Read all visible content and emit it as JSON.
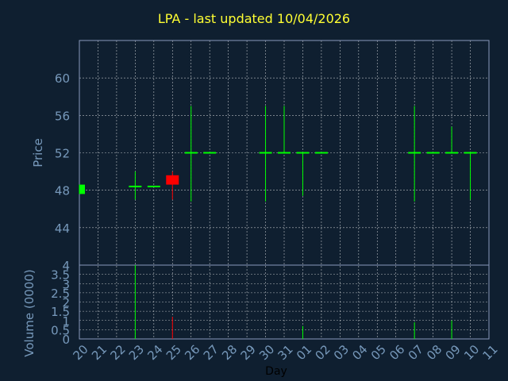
{
  "chart_data": [
    {
      "type": "candlestick",
      "title": "LPA - last updated 10/04/2026",
      "ylabel": "Price",
      "ylim": [
        40,
        64
      ],
      "yticks": [
        44,
        48,
        52,
        56,
        60
      ],
      "up_color": "#00ff00",
      "down_color": "#ff0000",
      "categories": [
        "20",
        "21",
        "22",
        "23",
        "24",
        "25",
        "26",
        "27",
        "28",
        "29",
        "30",
        "31",
        "01",
        "02",
        "03",
        "04",
        "05",
        "06",
        "07",
        "08",
        "09",
        "10",
        "11"
      ],
      "candles": [
        {
          "x": 0.0,
          "open": 47.6,
          "close": 48.6,
          "high": 48.6,
          "low": 47.6
        },
        {
          "x": 3.0,
          "open": 48.4,
          "close": 48.4,
          "high": 50.0,
          "low": 47.0
        },
        {
          "x": 4.0,
          "open": 48.4,
          "close": 48.4,
          "high": 48.4,
          "low": 48.4
        },
        {
          "x": 5.0,
          "open": 49.6,
          "close": 48.6,
          "high": 50.0,
          "low": 47.0
        },
        {
          "x": 6.0,
          "open": 52.0,
          "close": 52.0,
          "high": 57.0,
          "low": 46.8
        },
        {
          "x": 7.0,
          "open": 52.0,
          "close": 52.0,
          "high": 52.0,
          "low": 52.0
        },
        {
          "x": 10.0,
          "open": 52.0,
          "close": 52.0,
          "high": 57.0,
          "low": 46.8
        },
        {
          "x": 11.0,
          "open": 52.0,
          "close": 52.0,
          "high": 57.0,
          "low": 52.0
        },
        {
          "x": 12.0,
          "open": 52.0,
          "close": 52.0,
          "high": 52.0,
          "low": 47.4
        },
        {
          "x": 13.0,
          "open": 52.0,
          "close": 52.0,
          "high": 52.0,
          "low": 52.0
        },
        {
          "x": 18.0,
          "open": 52.0,
          "close": 52.0,
          "high": 57.0,
          "low": 46.8
        },
        {
          "x": 19.0,
          "open": 52.0,
          "close": 52.0,
          "high": 52.0,
          "low": 52.0
        },
        {
          "x": 20.0,
          "open": 52.0,
          "close": 52.0,
          "high": 54.8,
          "low": 52.0
        },
        {
          "x": 21.0,
          "open": 52.0,
          "close": 52.0,
          "high": 52.0,
          "low": 47.0
        }
      ]
    },
    {
      "type": "bar",
      "ylabel": "Volume (0000)",
      "xlabel": "Day",
      "ylim": [
        0,
        4
      ],
      "yticks": [
        0,
        0.5,
        1,
        1.5,
        2,
        2.5,
        3,
        3.5,
        4
      ],
      "ytick_labels": [
        "0",
        "0.5",
        "1",
        "1.5",
        "2",
        "2.5",
        "3",
        "3.5",
        "4"
      ],
      "categories": [
        "20",
        "21",
        "22",
        "23",
        "24",
        "25",
        "26",
        "27",
        "28",
        "29",
        "30",
        "31",
        "01",
        "02",
        "03",
        "04",
        "05",
        "06",
        "07",
        "08",
        "09",
        "10",
        "11"
      ],
      "bars": [
        {
          "x": 3.0,
          "value": 4.0,
          "color": "#00ff00"
        },
        {
          "x": 5.0,
          "value": 1.2,
          "color": "#ff0000"
        },
        {
          "x": 12.0,
          "value": 0.7,
          "color": "#00ff00"
        },
        {
          "x": 18.0,
          "value": 0.9,
          "color": "#00ff00"
        },
        {
          "x": 20.0,
          "value": 1.0,
          "color": "#00ff00"
        }
      ]
    }
  ],
  "colors": {
    "background": "#0f1f30",
    "plot_background": "#0f1f30",
    "axis": "#8899bb",
    "grid": "#ffffff",
    "tick_label": "#7799bb",
    "title": "#ffff33"
  }
}
